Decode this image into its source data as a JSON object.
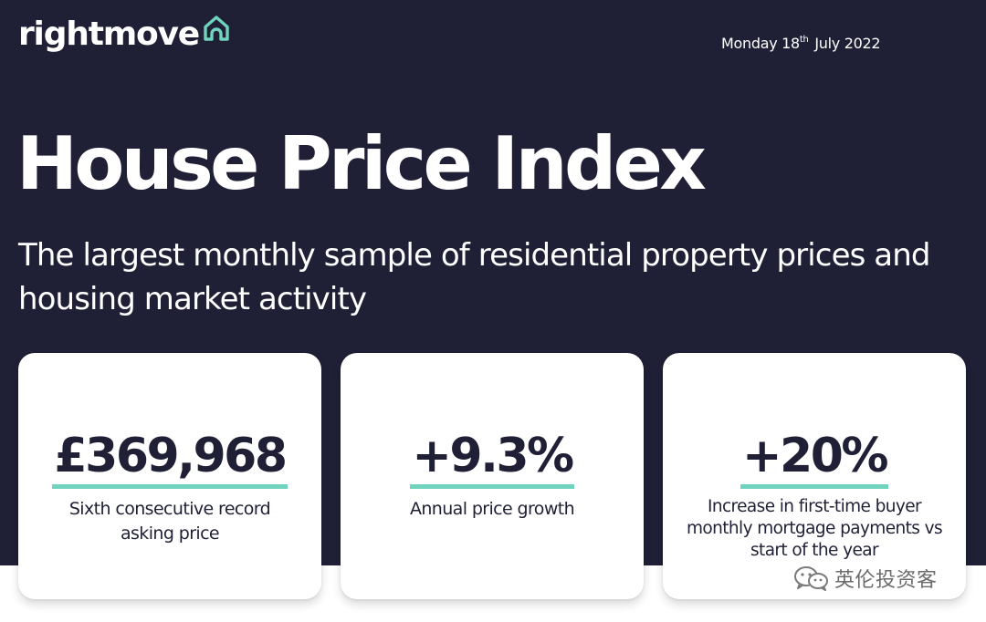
{
  "brand": {
    "name": "rightmove",
    "accent_color": "#6fd3bd",
    "background_color": "#1f2036",
    "text_color": "#ffffff"
  },
  "header": {
    "date_day": "Monday 18",
    "date_suffix": "th",
    "date_rest": "July 2022"
  },
  "hero": {
    "title": "House Price Index",
    "subtitle": "The largest monthly sample of residential property prices and housing market activity"
  },
  "cards": [
    {
      "value": "£369,968",
      "description": "Sixth consecutive record asking price"
    },
    {
      "value": "+9.3%",
      "description": "Annual price growth"
    },
    {
      "value": "+20%",
      "description": "Increase in first-time buyer monthly mortgage payments vs start of the year"
    }
  ],
  "watermark": {
    "text": "英伦投资客",
    "icon": "wechat-icon"
  }
}
